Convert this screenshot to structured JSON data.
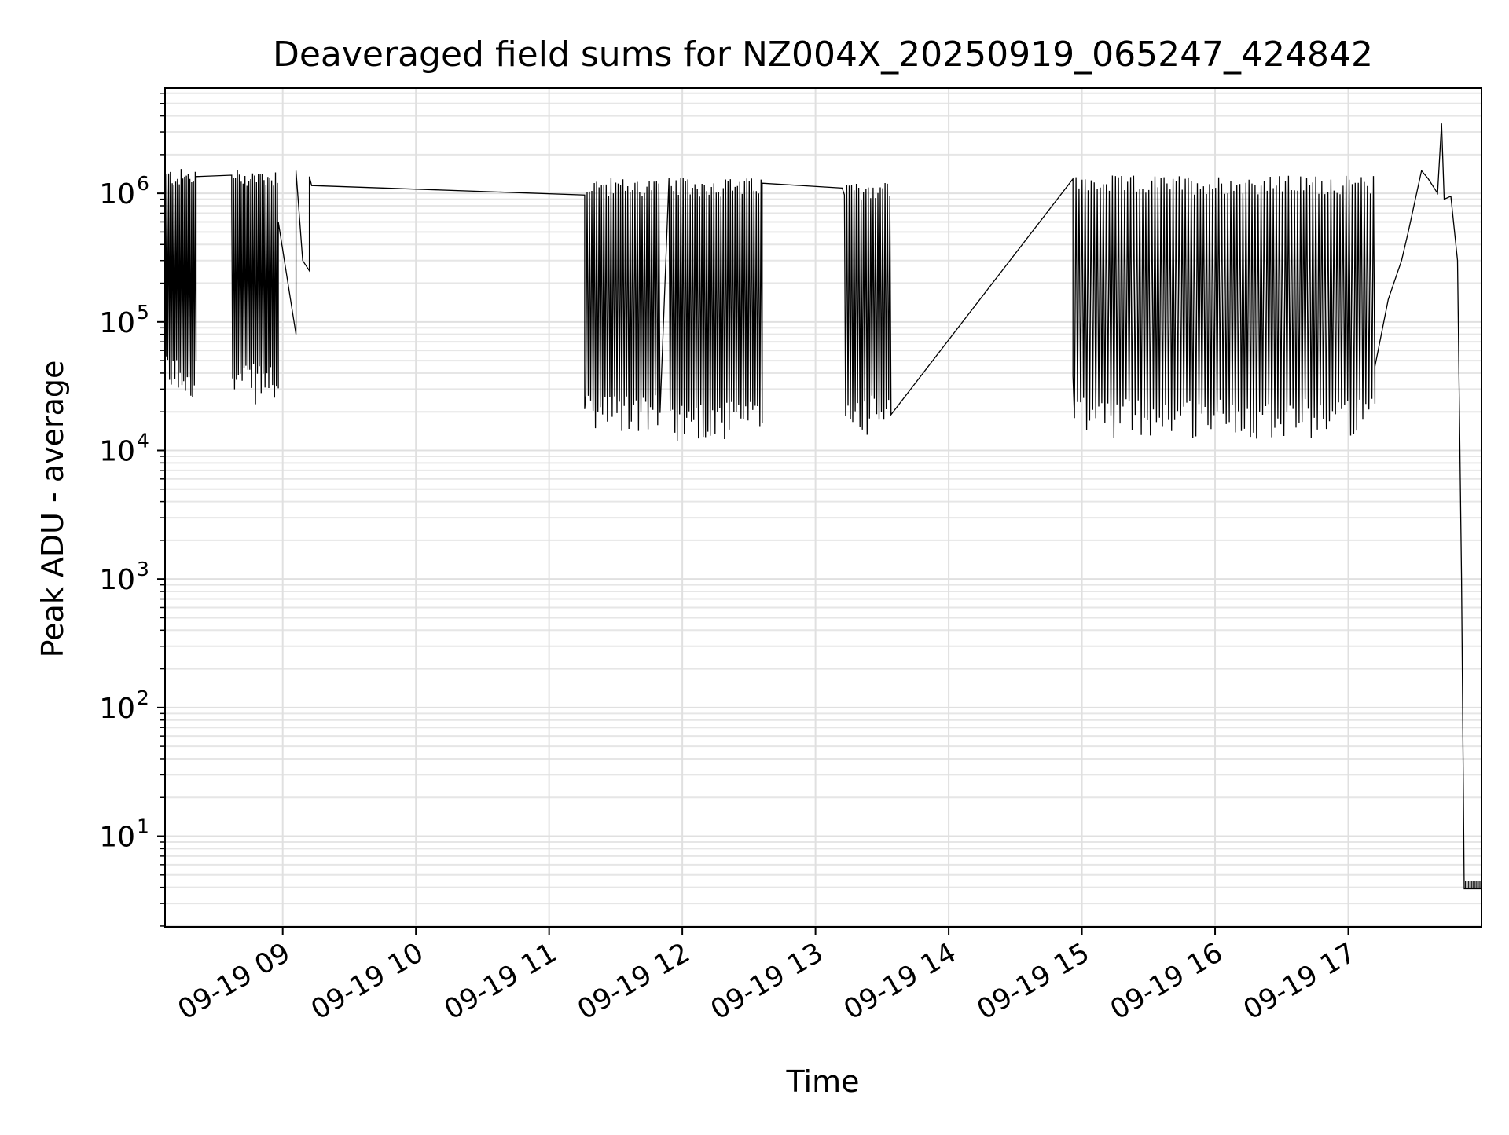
{
  "chart_data": {
    "type": "line",
    "title": "Deaveraged field sums for NZ004X_20250919_065247_424842",
    "xlabel": "Time",
    "ylabel": "Peak ADU - average",
    "yscale": "log",
    "grid": true,
    "line_color": "#000000",
    "xlim": [
      8.1167,
      18.0
    ],
    "ylim": [
      1.97,
      6600000
    ],
    "x_ticks": [
      {
        "value": 9,
        "label": "09-19 09"
      },
      {
        "value": 10,
        "label": "09-19 10"
      },
      {
        "value": 11,
        "label": "09-19 11"
      },
      {
        "value": 12,
        "label": "09-19 12"
      },
      {
        "value": 13,
        "label": "09-19 13"
      },
      {
        "value": 14,
        "label": "09-19 14"
      },
      {
        "value": 15,
        "label": "09-19 15"
      },
      {
        "value": 16,
        "label": "09-19 16"
      },
      {
        "value": 17,
        "label": "09-19 17"
      }
    ],
    "y_ticks": [
      {
        "exp": 1,
        "label": "10"
      },
      {
        "exp": 2,
        "label": "10"
      },
      {
        "exp": 3,
        "label": "10"
      },
      {
        "exp": 4,
        "label": "10"
      },
      {
        "exp": 5,
        "label": "10"
      },
      {
        "exp": 6,
        "label": "10"
      }
    ],
    "series": [
      {
        "style": "oscillating",
        "segments": [
          {
            "x0": 8.117,
            "x1": 8.35,
            "low": 40000,
            "high": 1300000,
            "n": 36
          },
          {
            "x0": 8.617,
            "x1": 8.967,
            "low": 35000,
            "high": 1300000,
            "n": 50
          },
          {
            "x0": 11.267,
            "x1": 11.833,
            "low": 20000,
            "high": 1100000,
            "n": 64
          },
          {
            "x0": 11.9,
            "x1": 12.6,
            "low": 18000,
            "high": 1100000,
            "n": 80
          },
          {
            "x0": 13.217,
            "x1": 13.567,
            "low": 20000,
            "high": 1050000,
            "n": 40
          },
          {
            "x0": 14.933,
            "x1": 17.2,
            "low": 19000,
            "high": 1150000,
            "n": 200
          }
        ],
        "points": [
          [
            8.35,
            1350000
          ],
          [
            8.617,
            900000
          ],
          [
            8.967,
            600000
          ],
          [
            9.1,
            80000
          ],
          [
            9.1,
            1500000
          ],
          [
            9.15,
            300000
          ],
          [
            9.2,
            250000
          ],
          [
            9.2,
            1350000
          ],
          [
            9.217,
            1150000
          ],
          [
            11.267,
            21000
          ],
          [
            12.6,
            1200000
          ],
          [
            13.2,
            1100000
          ],
          [
            13.567,
            19000
          ],
          [
            14.933,
            38000
          ],
          [
            17.2,
            45000
          ],
          [
            17.3,
            150000
          ],
          [
            17.4,
            300000
          ],
          [
            17.45,
            500000
          ],
          [
            17.55,
            1500000
          ],
          [
            17.6,
            1300000
          ],
          [
            17.67,
            1000000
          ],
          [
            17.7,
            3500000
          ],
          [
            17.72,
            900000
          ],
          [
            17.77,
            950000
          ],
          [
            17.82,
            300000
          ],
          [
            17.85,
            1000
          ],
          [
            17.87,
            3.9
          ],
          [
            18.0,
            3.9
          ]
        ]
      }
    ]
  }
}
